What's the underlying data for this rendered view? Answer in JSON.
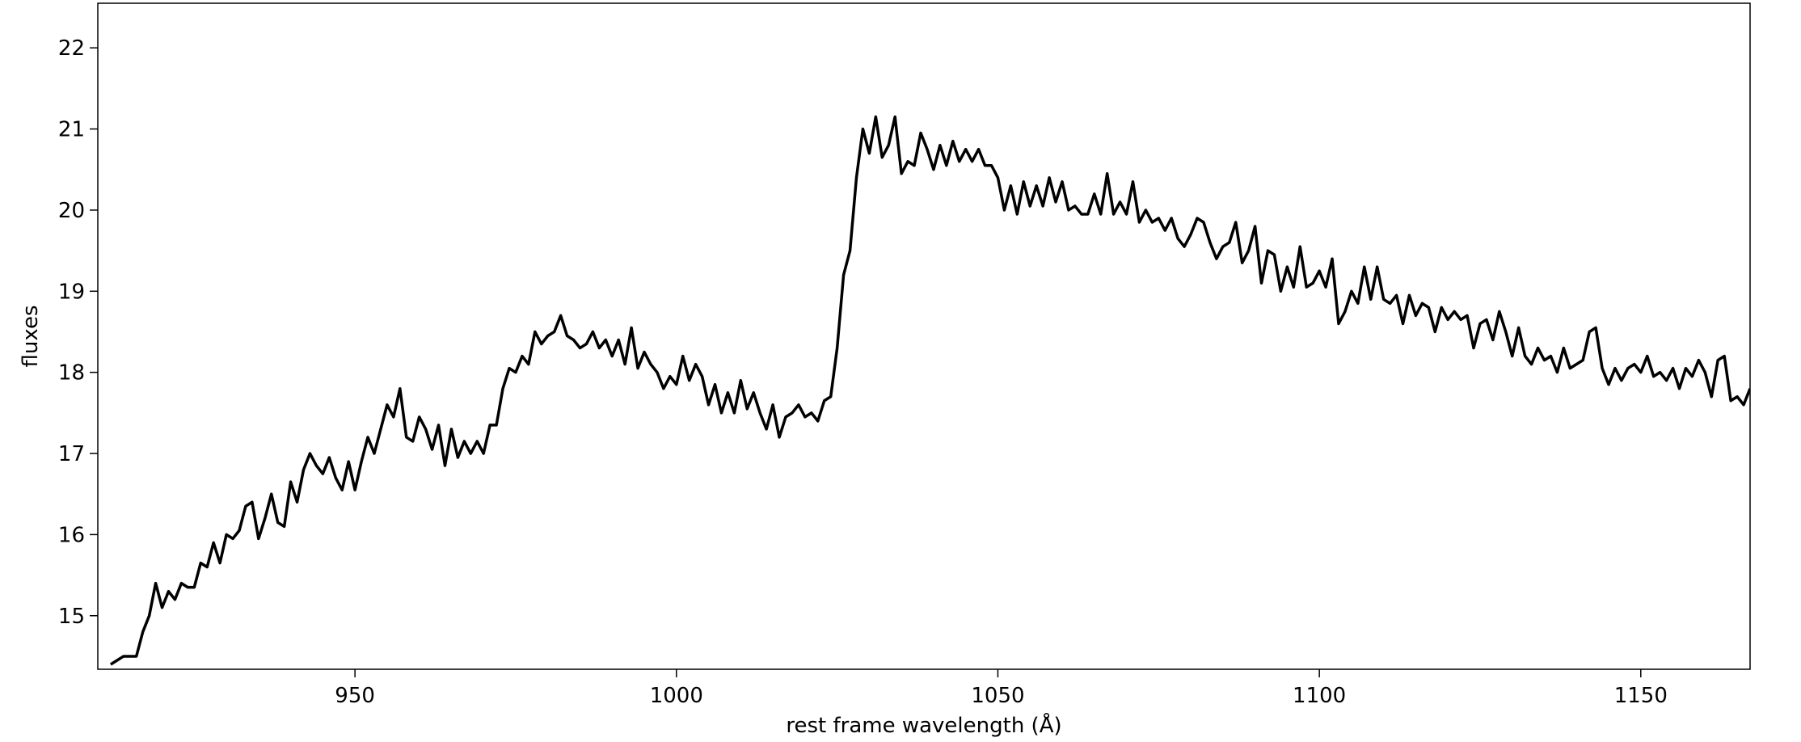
{
  "chart_data": {
    "type": "line",
    "x_label": "rest frame wavelength (Å)",
    "y_label": "fluxes",
    "xlim": [
      910,
      1167
    ],
    "ylim": [
      14.34,
      22.55
    ],
    "xticks": [
      950,
      1000,
      1050,
      1100,
      1150
    ],
    "yticks": [
      15,
      16,
      17,
      18,
      19,
      20,
      21,
      22
    ],
    "x": [
      912,
      913,
      914,
      915,
      916,
      917,
      918,
      919,
      920,
      921,
      922,
      923,
      924,
      925,
      926,
      927,
      928,
      929,
      930,
      931,
      932,
      933,
      934,
      935,
      936,
      937,
      938,
      939,
      940,
      941,
      942,
      943,
      944,
      945,
      946,
      947,
      948,
      949,
      950,
      951,
      952,
      953,
      954,
      955,
      956,
      957,
      958,
      959,
      960,
      961,
      962,
      963,
      964,
      965,
      966,
      967,
      968,
      969,
      970,
      971,
      972,
      973,
      974,
      975,
      976,
      977,
      978,
      979,
      980,
      981,
      982,
      983,
      984,
      985,
      986,
      987,
      988,
      989,
      990,
      991,
      992,
      993,
      994,
      995,
      996,
      997,
      998,
      999,
      1000,
      1001,
      1002,
      1003,
      1004,
      1005,
      1006,
      1007,
      1008,
      1009,
      1010,
      1011,
      1012,
      1013,
      1014,
      1015,
      1016,
      1017,
      1018,
      1019,
      1020,
      1021,
      1022,
      1023,
      1024,
      1025,
      1026,
      1027,
      1028,
      1029,
      1030,
      1031,
      1032,
      1033,
      1034,
      1035,
      1036,
      1037,
      1038,
      1039,
      1040,
      1041,
      1042,
      1043,
      1044,
      1045,
      1046,
      1047,
      1048,
      1049,
      1050,
      1051,
      1052,
      1053,
      1054,
      1055,
      1056,
      1057,
      1058,
      1059,
      1060,
      1061,
      1062,
      1063,
      1064,
      1065,
      1066,
      1067,
      1068,
      1069,
      1070,
      1071,
      1072,
      1073,
      1074,
      1075,
      1076,
      1077,
      1078,
      1079,
      1080,
      1081,
      1082,
      1083,
      1084,
      1085,
      1086,
      1087,
      1088,
      1089,
      1090,
      1091,
      1092,
      1093,
      1094,
      1095,
      1096,
      1097,
      1098,
      1099,
      1100,
      1101,
      1102,
      1103,
      1104,
      1105,
      1106,
      1107,
      1108,
      1109,
      1110,
      1111,
      1112,
      1113,
      1114,
      1115,
      1116,
      1117,
      1118,
      1119,
      1120,
      1121,
      1122,
      1123,
      1124,
      1125,
      1126,
      1127,
      1128,
      1129,
      1130,
      1131,
      1132,
      1133,
      1134,
      1135,
      1136,
      1137,
      1138,
      1139,
      1140,
      1141,
      1142,
      1143,
      1144,
      1145,
      1146,
      1147,
      1148,
      1149,
      1150,
      1151,
      1152,
      1153,
      1154,
      1155,
      1156,
      1157,
      1158,
      1159,
      1160,
      1161,
      1162,
      1163,
      1164,
      1165,
      1166,
      1167
    ],
    "series": [
      {
        "color": "#000000",
        "values": [
          14.4,
          14.45,
          14.5,
          14.5,
          14.5,
          14.8,
          15.0,
          15.4,
          15.1,
          15.3,
          15.2,
          15.4,
          15.35,
          15.35,
          15.65,
          15.6,
          15.9,
          15.65,
          16.0,
          15.95,
          16.05,
          16.35,
          16.4,
          15.95,
          16.2,
          16.5,
          16.15,
          16.1,
          16.65,
          16.4,
          16.8,
          17.0,
          16.85,
          16.75,
          16.95,
          16.7,
          16.55,
          16.9,
          16.55,
          16.9,
          17.2,
          17.0,
          17.3,
          17.6,
          17.45,
          17.8,
          17.2,
          17.15,
          17.45,
          17.3,
          17.05,
          17.35,
          16.85,
          17.3,
          16.95,
          17.15,
          17.0,
          17.15,
          17.0,
          17.35,
          17.35,
          17.8,
          18.05,
          18.0,
          18.2,
          18.1,
          18.5,
          18.35,
          18.45,
          18.5,
          18.7,
          18.45,
          18.4,
          18.3,
          18.35,
          18.5,
          18.3,
          18.4,
          18.2,
          18.4,
          18.1,
          18.55,
          18.05,
          18.25,
          18.1,
          18.0,
          17.8,
          17.95,
          17.85,
          18.2,
          17.9,
          18.1,
          17.95,
          17.6,
          17.85,
          17.5,
          17.75,
          17.5,
          17.9,
          17.55,
          17.75,
          17.5,
          17.3,
          17.6,
          17.2,
          17.45,
          17.5,
          17.6,
          17.45,
          17.5,
          17.4,
          17.65,
          17.7,
          18.3,
          19.2,
          19.5,
          20.4,
          21.0,
          20.7,
          21.15,
          20.65,
          20.8,
          21.15,
          20.45,
          20.6,
          20.55,
          20.95,
          20.75,
          20.5,
          20.8,
          20.55,
          20.85,
          20.6,
          20.75,
          20.6,
          20.75,
          20.55,
          20.55,
          20.4,
          20.0,
          20.3,
          19.95,
          20.35,
          20.05,
          20.3,
          20.05,
          20.4,
          20.1,
          20.35,
          20.0,
          20.05,
          19.95,
          19.95,
          20.2,
          19.95,
          20.45,
          19.95,
          20.1,
          19.95,
          20.35,
          19.85,
          20.0,
          19.85,
          19.9,
          19.75,
          19.9,
          19.65,
          19.55,
          19.7,
          19.9,
          19.85,
          19.6,
          19.4,
          19.55,
          19.6,
          19.85,
          19.35,
          19.5,
          19.8,
          19.1,
          19.5,
          19.45,
          19.0,
          19.3,
          19.05,
          19.55,
          19.05,
          19.1,
          19.25,
          19.05,
          19.4,
          18.6,
          18.75,
          19.0,
          18.85,
          19.3,
          18.9,
          19.3,
          18.9,
          18.85,
          18.95,
          18.6,
          18.95,
          18.7,
          18.85,
          18.8,
          18.5,
          18.8,
          18.65,
          18.75,
          18.65,
          18.7,
          18.3,
          18.6,
          18.65,
          18.4,
          18.75,
          18.5,
          18.2,
          18.55,
          18.2,
          18.1,
          18.3,
          18.15,
          18.2,
          18.0,
          18.3,
          18.05,
          18.1,
          18.15,
          18.5,
          18.55,
          18.05,
          17.85,
          18.05,
          17.9,
          18.05,
          18.1,
          18.0,
          18.2,
          17.95,
          18.0,
          17.9,
          18.05,
          17.8,
          18.05,
          17.95,
          18.15,
          18.0,
          17.7,
          18.15,
          18.2,
          17.65,
          17.7,
          17.6,
          17.8
        ]
      }
    ]
  }
}
